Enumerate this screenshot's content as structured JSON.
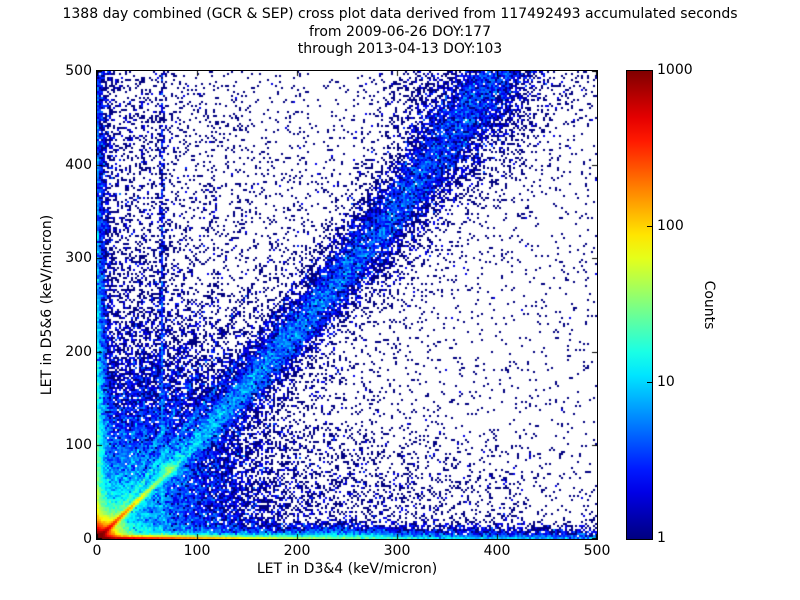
{
  "figure": {
    "background": "#ffffff",
    "frame_color": "#000000",
    "text_color": "#000000"
  },
  "chart_data": {
    "type": "heatmap",
    "title_lines": [
      "1388 day combined (GCR & SEP) cross plot data derived from 117492493 accumulated seconds",
      "from 2009-06-26 DOY:177",
      "through 2013-04-13 DOY:103"
    ],
    "xlabel": "LET in D3&4 (keV/micron)",
    "ylabel": "LET in D5&6 (keV/micron)",
    "xlim": [
      0,
      500
    ],
    "ylim": [
      0,
      500
    ],
    "xticks": [
      0,
      100,
      200,
      300,
      400,
      500
    ],
    "yticks": [
      0,
      100,
      200,
      300,
      400,
      500
    ],
    "grid": false,
    "colorbar": {
      "label": "Counts",
      "scale": "log",
      "min": 1,
      "max": 1000,
      "tick_values": [
        1000,
        100,
        10,
        1
      ],
      "tick_labels": [
        "1000",
        "100",
        "10",
        "1"
      ],
      "marked_ticks": [
        100,
        10
      ],
      "colormap": "jet",
      "color_min": "#000083",
      "color_max": "#800000"
    },
    "density_model": {
      "comment": "2D count-density features in data units (keV/micron); counts per 2x2px bin sampled as Poisson(sum of features); color = jet(log10(count)/3)",
      "bins_x": 250,
      "bins_y": 234,
      "seed": 42,
      "features": [
        {
          "name": "origin-core",
          "type": "radial_exp",
          "x": 0,
          "y": 0,
          "amp": 2500,
          "scale": 5.5
        },
        {
          "name": "origin-halo",
          "type": "radial_exp",
          "x": 0,
          "y": 0,
          "amp": 18,
          "scale": 30
        },
        {
          "name": "origin-halo-wide",
          "type": "radial_exp",
          "x": 0,
          "y": 0,
          "amp": 9,
          "scale": 55
        },
        {
          "name": "origin-wedge",
          "type": "gauss2",
          "x": 55,
          "y": 85,
          "sx": 75,
          "sy": 100,
          "amp": 1.3
        },
        {
          "name": "proton-diagonal-streak",
          "type": "ray",
          "slope": 1.0,
          "amp": 700,
          "len": 25,
          "width": 2.0
        },
        {
          "name": "streak-end-blob",
          "type": "gauss2",
          "x": 72,
          "y": 74,
          "sx": 6,
          "sy": 6,
          "amp": 22
        },
        {
          "name": "fan-streak-1",
          "type": "ray",
          "slope": 1.35,
          "amp": 16,
          "len": 110,
          "width": 2.4
        },
        {
          "name": "fan-streak-2",
          "type": "ray",
          "slope": 1.75,
          "amp": 10,
          "len": 100,
          "width": 2.4
        },
        {
          "name": "fan-streak-3",
          "type": "ray",
          "slope": 2.3,
          "amp": 7,
          "len": 95,
          "width": 2.5
        },
        {
          "name": "fan-streak-4",
          "type": "ray",
          "slope": 3.1,
          "amp": 5,
          "len": 88,
          "width": 2.6
        },
        {
          "name": "fan-streak-5",
          "type": "ray",
          "slope": 4.5,
          "amp": 3.5,
          "len": 82,
          "width": 2.8
        },
        {
          "name": "main-band-core",
          "type": "band",
          "amp": 9,
          "decay": 300,
          "width0": 5,
          "widthSlope": 0.085,
          "curve": 0.0006
        },
        {
          "name": "main-band-wings",
          "type": "band",
          "amp": 1.1,
          "decay": 380,
          "width0": 14,
          "widthSlope": 0.22,
          "curve": 0.0006
        },
        {
          "name": "band-top-cloud",
          "type": "gauss2",
          "x": 365,
          "y": 470,
          "sx": 60,
          "sy": 65,
          "amp": 0.55
        },
        {
          "name": "left-edge-red",
          "type": "vband",
          "amp": 150,
          "decayY": 18,
          "widthX": 2.5
        },
        {
          "name": "left-edge-column",
          "type": "vband",
          "amp": 22,
          "decayY": 120,
          "widthX": 7
        },
        {
          "name": "left-edge-column-upper",
          "type": "vband",
          "amp": 4.5,
          "decayY": 420,
          "widthX": 9
        },
        {
          "name": "left-edge-line",
          "type": "vband",
          "amp": 12,
          "decayY": 260,
          "widthX": 1.8
        },
        {
          "name": "bottom-edge-red",
          "type": "hband",
          "amp": 900,
          "decayX": 55,
          "widthY": 2.2
        },
        {
          "name": "bottom-edge-mid",
          "type": "hband",
          "amp": 40,
          "decayX": 150,
          "widthY": 4.5
        },
        {
          "name": "bottom-edge-wide",
          "type": "hband",
          "amp": 6,
          "decayX": 500,
          "widthY": 11
        },
        {
          "name": "bottom-edge-line",
          "type": "hband",
          "amp": 8,
          "decayX": 600,
          "widthY": 2.0
        },
        {
          "name": "bottom-bump",
          "type": "gauss2",
          "x": 245,
          "y": 0,
          "sx": 42,
          "sy": 9,
          "amp": 6
        },
        {
          "name": "vertical-streak-46",
          "type": "vstreak",
          "x": 46,
          "amp": 1.0,
          "decayY": 260,
          "width": 1.6
        },
        {
          "name": "vertical-streak-65",
          "type": "vstreak",
          "x": 65,
          "amp": 5,
          "decayY": 320,
          "width": 1.8
        },
        {
          "name": "vertical-streak-117",
          "type": "vstreak",
          "x": 117,
          "amp": 0.7,
          "decayY": 240,
          "width": 1.8
        },
        {
          "name": "diffuse-left",
          "type": "diffuse",
          "amp": 0.55,
          "decayX": 70,
          "decayY": 1500
        },
        {
          "name": "diffuse-floor",
          "type": "const",
          "amp": 0.045
        },
        {
          "name": "diffuse-bottom-right",
          "type": "gauss2",
          "x": 250,
          "y": 40,
          "sx": 160,
          "sy": 60,
          "amp": 0.25
        }
      ]
    }
  }
}
